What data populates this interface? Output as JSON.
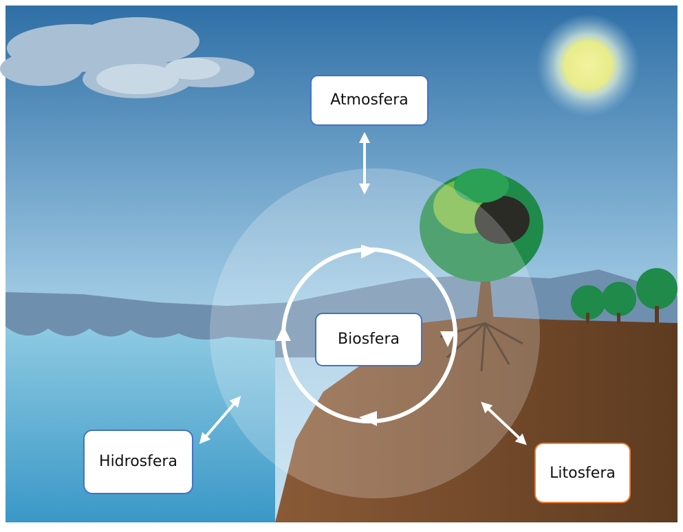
{
  "nodes": [
    {
      "label": "Atmosfera"
    },
    {
      "label": "Biosfera"
    },
    {
      "label": "Hidrosfera"
    },
    {
      "label": "Litosfera"
    }
  ]
}
